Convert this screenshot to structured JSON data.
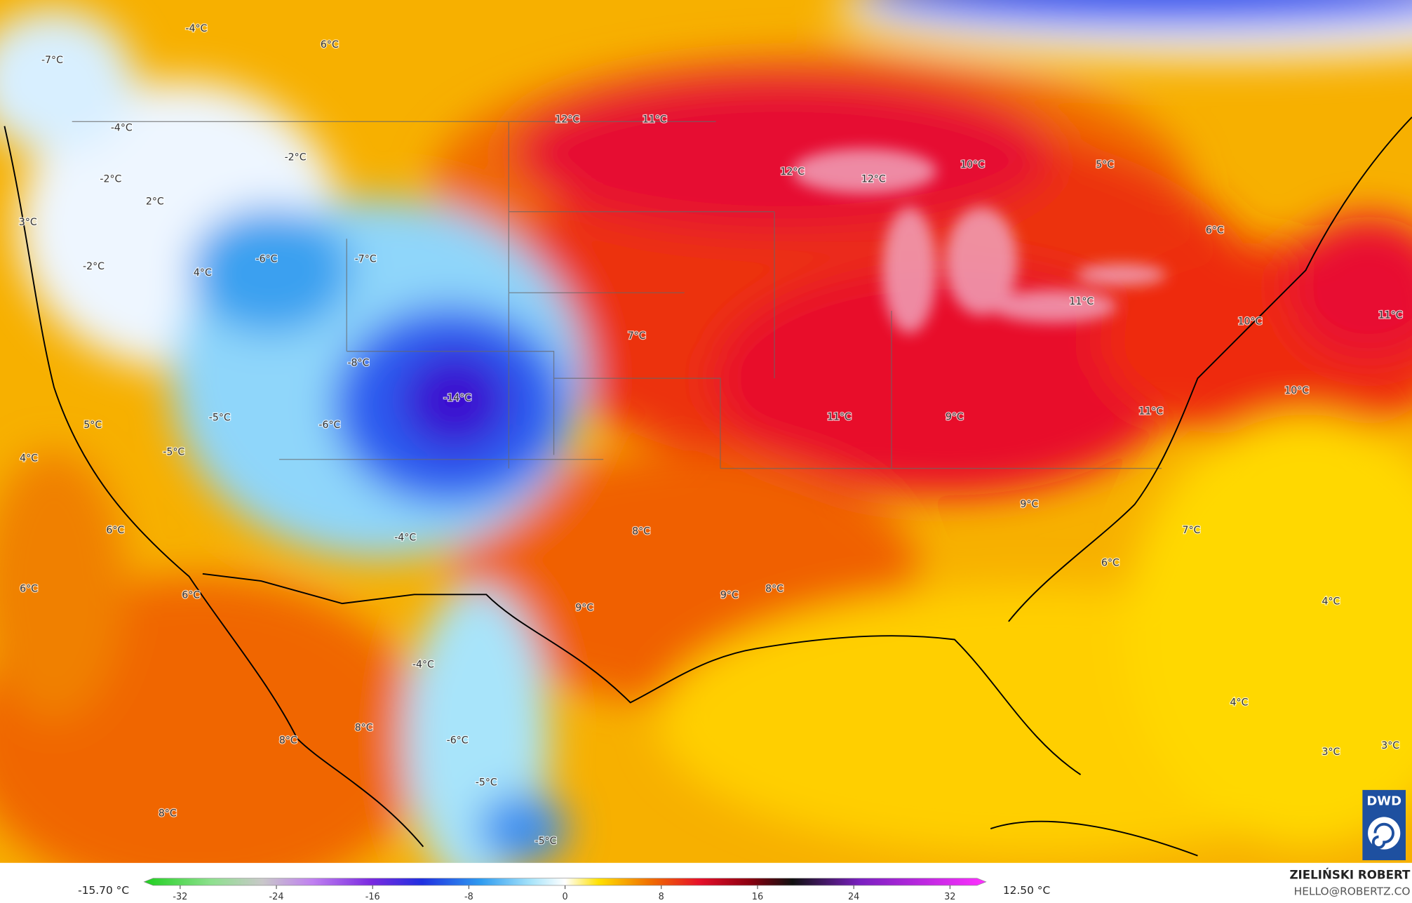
{
  "map": {
    "labels": [
      "-4°C",
      "6°C",
      "-7°C",
      "12°C",
      "11°C",
      "-4°C",
      "-2°C",
      "12°C",
      "12°C",
      "10°C",
      "5°C",
      "-2°C",
      "2°C",
      "3°C",
      "6°C",
      "-6°C",
      "-7°C",
      "4°C",
      "-2°C",
      "11°C",
      "10°C",
      "11°C",
      "7°C",
      "-8°C",
      "-14°C",
      "10°C",
      "11°C",
      "9°C",
      "11°C",
      "-5°C",
      "-6°C",
      "5°C",
      "-5°C",
      "4°C",
      "9°C",
      "6°C",
      "8°C",
      "7°C",
      "-4°C",
      "6°C",
      "6°C",
      "6°C",
      "9°C",
      "8°C",
      "9°C",
      "4°C",
      "-4°C",
      "4°C",
      "8°C",
      "8°C",
      "-6°C",
      "3°C",
      "3°C",
      "-5°C",
      "8°C",
      "-5°C"
    ]
  },
  "legend": {
    "min_label": "-15.70 °C",
    "max_label": "12.50 °C",
    "lim": [
      -35,
      35
    ],
    "ticks": [
      -32,
      -24,
      -16,
      -8,
      0,
      8,
      16,
      24,
      32
    ]
  },
  "credit": {
    "name": "ZIELIŃSKI ROBERT",
    "email": "HELLO@ROBERTZ.CO"
  },
  "logo": "DWD"
}
